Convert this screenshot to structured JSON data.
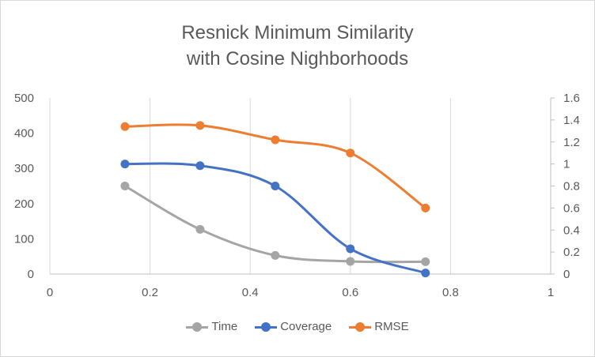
{
  "chart_data": {
    "type": "line",
    "title_lines": [
      "Resnick Minimum Similarity",
      "with Cosine Nighborhoods"
    ],
    "x": [
      0.15,
      0.3,
      0.45,
      0.6,
      0.75
    ],
    "xlim": [
      0,
      1
    ],
    "x_ticks": [
      "0",
      "0.2",
      "0.4",
      "0.6",
      "0.8",
      "1"
    ],
    "y_left_lim": [
      0,
      500
    ],
    "y_left_ticks": [
      "0",
      "100",
      "200",
      "300",
      "400",
      "500"
    ],
    "y_right_lim": [
      0,
      1.6
    ],
    "y_right_ticks": [
      "0",
      "0.2",
      "0.4",
      "0.6",
      "0.8",
      "1",
      "1.2",
      "1.4",
      "1.6"
    ],
    "grid": "vertical",
    "legend_position": "bottom",
    "series": [
      {
        "name": "Time",
        "axis": "left",
        "color": "#a5a5a5",
        "values": [
          250,
          127,
          53,
          36,
          35
        ]
      },
      {
        "name": "Coverage",
        "axis": "right",
        "color": "#4472c4",
        "values": [
          1.0,
          0.985,
          0.8,
          0.23,
          0.01
        ]
      },
      {
        "name": "RMSE",
        "axis": "right",
        "color": "#ed7d31",
        "values": [
          1.34,
          1.35,
          1.22,
          1.1,
          0.6
        ]
      }
    ]
  }
}
